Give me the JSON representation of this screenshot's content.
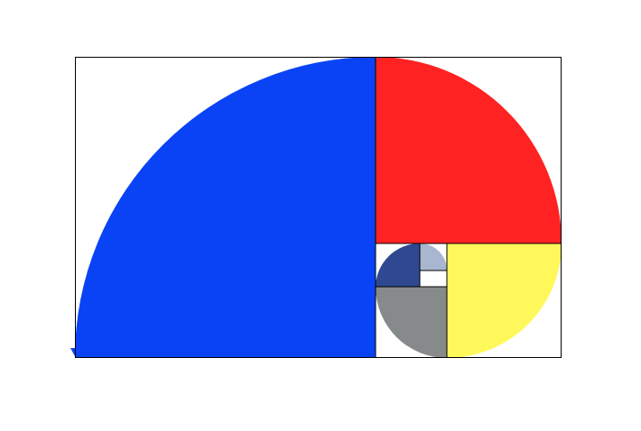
{
  "figure": {
    "kind": "golden-ratio-rectangle-with-quarter-circle-spiral",
    "colors": {
      "background": "#ffffff",
      "outline": "#000000",
      "q1": "#0a43f5",
      "q2": "#ff2222",
      "q3": "#fff85a",
      "q4": "#878a8a",
      "q5": "#304890",
      "q6": "#a8b6d0"
    }
  }
}
